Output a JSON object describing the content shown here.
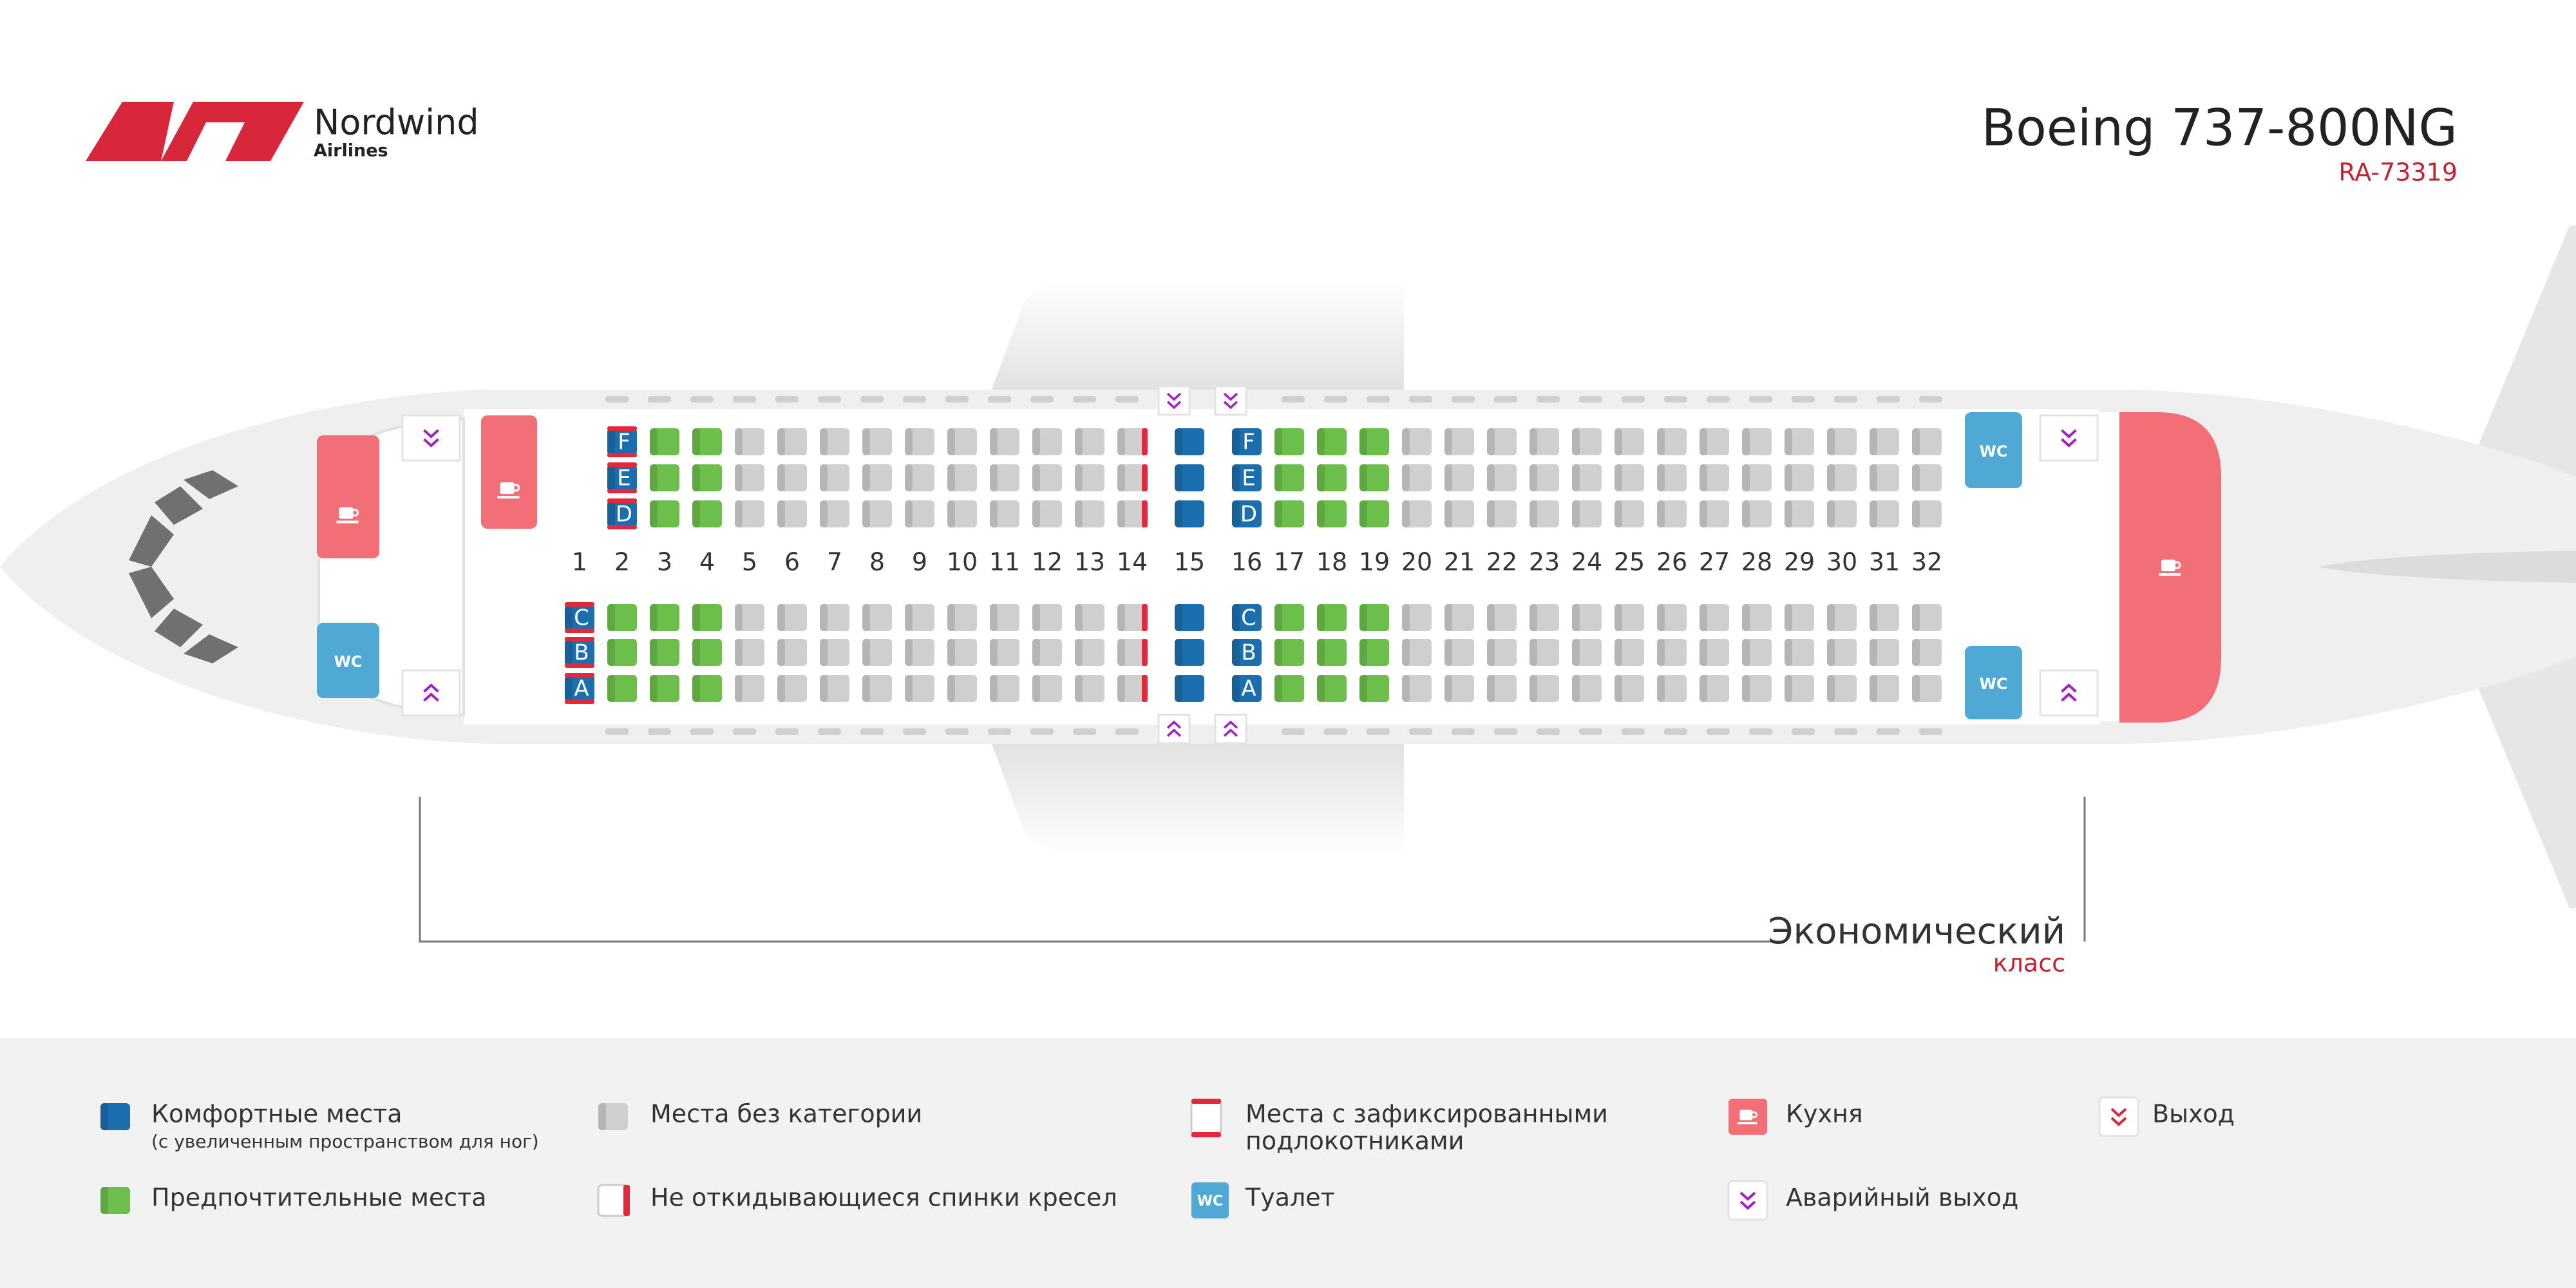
{
  "header": {
    "brand": "Nordwind",
    "brand_sub": "Airlines",
    "aircraft": "Boeing 737-800NG",
    "registration": "RA-73319"
  },
  "cabin": {
    "class_name": "Экономический",
    "class_sub": "класс",
    "wc_label": "WC",
    "seat_letters": {
      "upper": [
        "F",
        "E",
        "D"
      ],
      "lower": [
        "C",
        "B",
        "A"
      ]
    },
    "rows": [
      {
        "label": "1",
        "upper": null,
        "lower": [
          0,
          4
        ],
        "letters": [
          "lower"
        ]
      },
      {
        "label": "2",
        "upper": [
          0,
          4
        ],
        "lower": [
          1
        ],
        "letters": [
          "upper"
        ]
      },
      {
        "label": "3",
        "upper": [
          1
        ],
        "lower": [
          1
        ]
      },
      {
        "label": "4",
        "upper": [
          1
        ],
        "lower": [
          1
        ]
      },
      {
        "label": "5",
        "upper": [
          2
        ],
        "lower": [
          2
        ]
      },
      {
        "label": "6",
        "upper": [
          2
        ],
        "lower": [
          2
        ]
      },
      {
        "label": "7",
        "upper": [
          2
        ],
        "lower": [
          2
        ]
      },
      {
        "label": "8",
        "upper": [
          2
        ],
        "lower": [
          2
        ]
      },
      {
        "label": "9",
        "upper": [
          2
        ],
        "lower": [
          2
        ]
      },
      {
        "label": "10",
        "upper": [
          2
        ],
        "lower": [
          2
        ]
      },
      {
        "label": "11",
        "upper": [
          2
        ],
        "lower": [
          2
        ]
      },
      {
        "label": "12",
        "upper": [
          2
        ],
        "lower": [
          2
        ]
      },
      {
        "label": "13",
        "upper": [
          2
        ],
        "lower": [
          2
        ]
      },
      {
        "label": "14",
        "upper": [
          2,
          3
        ],
        "lower": [
          2,
          3
        ]
      },
      {
        "label": "15",
        "upper": [
          0
        ],
        "lower": [
          0
        ]
      },
      {
        "label": "16",
        "upper": [
          0
        ],
        "lower": [
          0
        ],
        "letters": [
          "upper",
          "lower"
        ]
      },
      {
        "label": "17",
        "upper": [
          1
        ],
        "lower": [
          1
        ]
      },
      {
        "label": "18",
        "upper": [
          1
        ],
        "lower": [
          1
        ]
      },
      {
        "label": "19",
        "upper": [
          1
        ],
        "lower": [
          1
        ]
      },
      {
        "label": "20",
        "upper": [
          2
        ],
        "lower": [
          2
        ]
      },
      {
        "label": "21",
        "upper": [
          2
        ],
        "lower": [
          2
        ]
      },
      {
        "label": "22",
        "upper": [
          2
        ],
        "lower": [
          2
        ]
      },
      {
        "label": "23",
        "upper": [
          2
        ],
        "lower": [
          2
        ]
      },
      {
        "label": "24",
        "upper": [
          2
        ],
        "lower": [
          2
        ]
      },
      {
        "label": "25",
        "upper": [
          2
        ],
        "lower": [
          2
        ]
      },
      {
        "label": "26",
        "upper": [
          2
        ],
        "lower": [
          2
        ]
      },
      {
        "label": "27",
        "upper": [
          2
        ],
        "lower": [
          2
        ]
      },
      {
        "label": "28",
        "upper": [
          2
        ],
        "lower": [
          2
        ]
      },
      {
        "label": "29",
        "upper": [
          2
        ],
        "lower": [
          2
        ]
      },
      {
        "label": "30",
        "upper": [
          2
        ],
        "lower": [
          2
        ]
      },
      {
        "label": "31",
        "upper": [
          2
        ],
        "lower": [
          2
        ]
      },
      {
        "label": "32",
        "upper": [
          2
        ],
        "lower": [
          2
        ]
      }
    ]
  },
  "legend": [
    {
      "lines": [
        "Комфортные места"
      ],
      "note": "(с увеличенным пространством для ног)",
      "icon": "seat",
      "color": "#1b6fae"
    },
    {
      "lines": [
        "Предпочтительные места"
      ],
      "icon": "seat",
      "color": "#6cbf4a"
    },
    {
      "lines": [
        "Места без категории"
      ],
      "icon": "seat",
      "color": "#cfcfcf"
    },
    {
      "lines": [
        "Не откидывающиеся спинки кресел"
      ],
      "icon": "norecline",
      "color": "#e4283c"
    },
    {
      "lines": [
        "Места с зафиксированными",
        "подлокотниками"
      ],
      "icon": "armrest",
      "color": "#e4283c"
    },
    {
      "lines": [
        "Туалет"
      ],
      "icon": "wc",
      "color": "#4fa9d4"
    },
    {
      "lines": [
        "Кухня"
      ],
      "icon": "galley",
      "color": "#f36f77"
    },
    {
      "lines": [
        "Аварийный выход"
      ],
      "icon": "emergency",
      "color": "#a321c4"
    },
    {
      "lines": [
        "Выход"
      ],
      "icon": "exit",
      "color": "#d8263a"
    }
  ]
}
